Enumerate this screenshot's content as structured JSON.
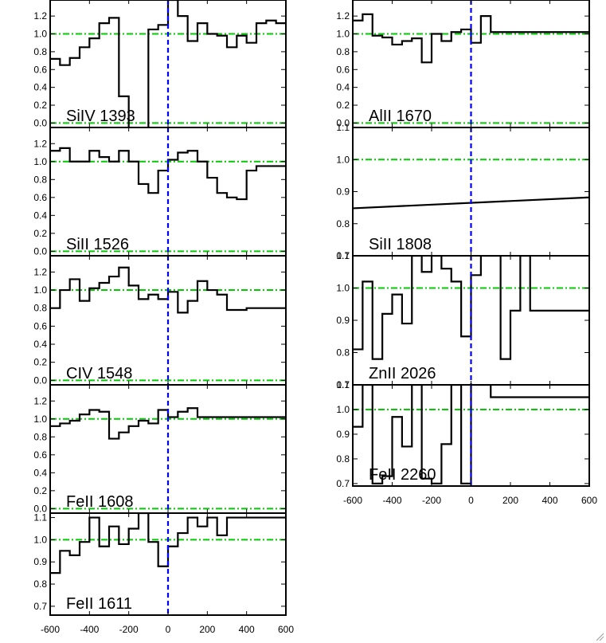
{
  "chart_data": {
    "type": "line",
    "style": {
      "spectrum_color": "#000000",
      "continuum_color": "#00cc00",
      "velocity_zero_color": "#0000ff",
      "background": "#ffffff"
    },
    "x_range": [
      -600,
      600
    ],
    "x_ticks": [
      -600,
      -400,
      -200,
      0,
      200,
      400,
      600
    ],
    "panels": [
      {
        "id": "siiv1393",
        "label": "SiIV 1393",
        "column": "left",
        "ylim": [
          -0.05,
          1.38
        ],
        "y_ticks": [
          0.0,
          0.2,
          0.4,
          0.6,
          0.8,
          1.0,
          1.2
        ],
        "y_tick_labels": [
          "0.0",
          "0.2",
          "0.4",
          "0.6",
          "0.8",
          "1.0",
          "1.2"
        ],
        "continuum": 1.0,
        "series": [
          {
            "x": [
              -600,
              -550,
              -500,
              -450,
              -400,
              -350,
              -300,
              -250,
              -200,
              -150,
              -100,
              -50,
              0,
              50,
              100,
              150,
              200,
              250,
              300,
              350,
              400,
              450,
              500,
              550,
              600
            ],
            "y": [
              0.72,
              0.65,
              0.73,
              0.85,
              0.95,
              1.12,
              1.18,
              0.3,
              -0.1,
              -0.1,
              1.05,
              1.1,
              1.38,
              1.2,
              0.92,
              1.12,
              1.0,
              0.98,
              0.85,
              0.98,
              0.9,
              1.12,
              1.15,
              1.12,
              1.14
            ]
          }
        ]
      },
      {
        "id": "siii1526",
        "label": "SiII 1526",
        "column": "left",
        "ylim": [
          -0.05,
          1.38
        ],
        "y_ticks": [
          0.0,
          0.2,
          0.4,
          0.6,
          0.8,
          1.0,
          1.2
        ],
        "y_tick_labels": [
          "0.0",
          "0.2",
          "0.4",
          "0.6",
          "0.8",
          "1.0",
          "1.2"
        ],
        "continuum": 1.0,
        "series": [
          {
            "x": [
              -600,
              -550,
              -500,
              -450,
              -400,
              -350,
              -300,
              -250,
              -200,
              -150,
              -100,
              -50,
              0,
              50,
              100,
              150,
              200,
              250,
              300,
              350,
              400,
              450,
              500,
              550,
              600
            ],
            "y": [
              1.12,
              1.15,
              1.0,
              1.0,
              1.12,
              1.05,
              1.0,
              1.12,
              1.0,
              0.75,
              0.65,
              0.9,
              1.02,
              1.1,
              1.12,
              1.0,
              0.82,
              0.65,
              0.6,
              0.58,
              0.9,
              0.95,
              0.95,
              0.95,
              0.95
            ]
          }
        ]
      },
      {
        "id": "civ1548",
        "label": "CIV 1548",
        "column": "left",
        "ylim": [
          -0.05,
          1.38
        ],
        "y_ticks": [
          0.0,
          0.2,
          0.4,
          0.6,
          0.8,
          1.0,
          1.2
        ],
        "y_tick_labels": [
          "0.0",
          "0.2",
          "0.4",
          "0.6",
          "0.8",
          "1.0",
          "1.2"
        ],
        "continuum": 1.0,
        "series": [
          {
            "x": [
              -600,
              -550,
              -500,
              -450,
              -400,
              -350,
              -300,
              -250,
              -200,
              -150,
              -100,
              -50,
              0,
              50,
              100,
              150,
              200,
              250,
              300,
              350,
              400,
              450,
              500,
              550,
              600
            ],
            "y": [
              0.8,
              1.0,
              1.12,
              0.88,
              1.02,
              1.08,
              1.15,
              1.25,
              1.05,
              0.9,
              0.95,
              0.9,
              0.98,
              0.75,
              0.88,
              1.1,
              1.0,
              0.95,
              0.78,
              0.78,
              0.8,
              0.8,
              0.8,
              0.8,
              0.8
            ]
          }
        ]
      },
      {
        "id": "feii1608",
        "label": "FeII 1608",
        "column": "left",
        "ylim": [
          -0.05,
          1.38
        ],
        "y_ticks": [
          0.0,
          0.2,
          0.4,
          0.6,
          0.8,
          1.0,
          1.2
        ],
        "y_tick_labels": [
          "0.0",
          "0.2",
          "0.4",
          "0.6",
          "0.8",
          "1.0",
          "1.2"
        ],
        "continuum": 1.0,
        "series": [
          {
            "x": [
              -600,
              -550,
              -500,
              -450,
              -400,
              -350,
              -300,
              -250,
              -200,
              -150,
              -100,
              -50,
              0,
              50,
              100,
              150,
              200,
              250,
              300,
              350,
              400,
              450,
              500,
              550,
              600
            ],
            "y": [
              0.92,
              0.95,
              0.98,
              1.05,
              1.1,
              1.08,
              0.78,
              0.85,
              0.92,
              0.98,
              0.95,
              1.1,
              1.02,
              1.08,
              1.12,
              1.02,
              1.02,
              1.02,
              1.02,
              1.02,
              1.02,
              1.02,
              1.02,
              1.02,
              1.02
            ]
          }
        ]
      },
      {
        "id": "feii1611",
        "label": "FeII 1611",
        "column": "left",
        "ylim": [
          0.66,
          1.12
        ],
        "y_ticks": [
          0.7,
          0.8,
          0.9,
          1.0,
          1.1
        ],
        "y_tick_labels": [
          "0.7",
          "0.8",
          "0.9",
          "1.0",
          "1.1"
        ],
        "continuum": 1.0,
        "series": [
          {
            "x": [
              -600,
              -550,
              -500,
              -450,
              -400,
              -350,
              -300,
              -250,
              -200,
              -150,
              -100,
              -50,
              0,
              50,
              100,
              150,
              200,
              250,
              300,
              350,
              400,
              450,
              500,
              550,
              600
            ],
            "y": [
              0.85,
              0.95,
              0.93,
              0.99,
              1.1,
              0.97,
              1.06,
              0.98,
              1.05,
              1.12,
              0.99,
              0.88,
              0.97,
              1.03,
              1.1,
              1.06,
              1.1,
              1.02,
              1.1,
              1.1,
              1.1,
              1.1,
              1.1,
              1.1,
              1.1
            ]
          }
        ]
      },
      {
        "id": "alii1670",
        "label": "AlII 1670",
        "column": "right",
        "ylim": [
          -0.05,
          1.38
        ],
        "y_ticks": [
          0.0,
          0.2,
          0.4,
          0.6,
          0.8,
          1.0,
          1.2
        ],
        "y_tick_labels": [
          "0.0",
          "0.2",
          "0.4",
          "0.6",
          "0.8",
          "1.0",
          "1.2"
        ],
        "continuum": 1.0,
        "series": [
          {
            "x": [
              -600,
              -550,
              -500,
              -450,
              -400,
              -350,
              -300,
              -250,
              -200,
              -150,
              -100,
              -50,
              0,
              50,
              100,
              150,
              200,
              250,
              300,
              350,
              400,
              450,
              500,
              550,
              600
            ],
            "y": [
              1.15,
              1.22,
              0.98,
              0.96,
              0.88,
              0.92,
              0.95,
              0.68,
              1.0,
              0.92,
              1.02,
              1.05,
              0.9,
              1.2,
              1.02,
              1.02,
              1.02,
              1.02,
              1.02,
              1.02,
              1.02,
              1.02,
              1.02,
              1.02,
              1.02
            ]
          }
        ]
      },
      {
        "id": "siii1808",
        "label": "SiII 1808",
        "column": "right",
        "ylim": [
          0.7,
          1.1
        ],
        "y_ticks": [
          0.7,
          0.8,
          0.9,
          1.0,
          1.1
        ],
        "y_tick_labels": [
          "0.7",
          "0.8",
          "0.9",
          "1.0",
          "1.1"
        ],
        "continuum": 1.0,
        "series": [
          {
            "x": [
              -600,
              600
            ],
            "y": [
              0.848,
              0.882
            ]
          }
        ]
      },
      {
        "id": "znii2026",
        "label": "ZnII 2026",
        "column": "right",
        "ylim": [
          0.7,
          1.1
        ],
        "y_ticks": [
          0.7,
          0.8,
          0.9,
          1.0,
          1.1
        ],
        "y_tick_labels": [
          "0.7",
          "0.8",
          "0.9",
          "1.0",
          "1.1"
        ],
        "continuum": 1.0,
        "series": [
          {
            "x": [
              -600,
              -550,
              -500,
              -450,
              -400,
              -350,
              -300,
              -250,
              -200,
              -150,
              -100,
              -50,
              0,
              50,
              100,
              150,
              200,
              250,
              300,
              350,
              400,
              450,
              500,
              550,
              600
            ],
            "y": [
              0.81,
              1.02,
              0.78,
              0.92,
              0.98,
              0.89,
              1.1,
              1.05,
              1.1,
              1.06,
              1.02,
              0.85,
              1.04,
              1.1,
              1.1,
              0.78,
              0.93,
              1.1,
              0.93,
              0.93,
              0.93,
              0.93,
              0.93,
              0.93,
              0.93
            ]
          }
        ]
      },
      {
        "id": "feii2260",
        "label": "FeII 2260",
        "column": "right",
        "ylim": [
          0.69,
          1.1
        ],
        "y_ticks": [
          0.7,
          0.8,
          0.9,
          1.0,
          1.1
        ],
        "y_tick_labels": [
          "0.7",
          "0.8",
          "0.9",
          "1.0",
          "1.1"
        ],
        "continuum": 1.0,
        "series": [
          {
            "x": [
              -600,
              -550,
              -500,
              -450,
              -400,
              -350,
              -300,
              -250,
              -200,
              -150,
              -100,
              -50,
              0,
              50,
              100,
              150,
              200,
              250,
              300,
              350,
              400,
              450,
              500,
              550,
              600
            ],
            "y": [
              0.93,
              1.1,
              0.7,
              0.73,
              0.97,
              0.85,
              1.1,
              0.72,
              0.7,
              0.86,
              1.1,
              0.7,
              1.1,
              1.1,
              1.05,
              1.05,
              1.05,
              1.05,
              1.05,
              1.05,
              1.05,
              1.05,
              1.05,
              1.05,
              1.05
            ]
          }
        ]
      }
    ]
  }
}
